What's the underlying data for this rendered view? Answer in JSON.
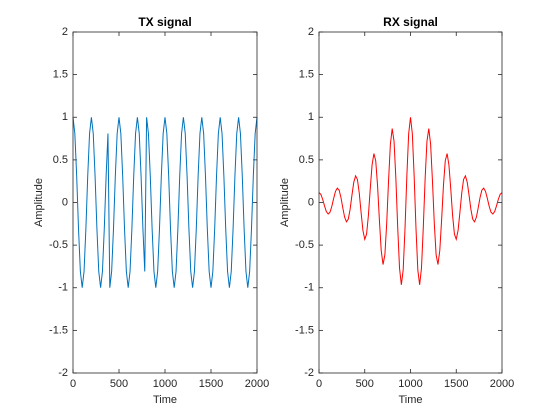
{
  "chart_data": [
    {
      "type": "line",
      "title": "TX signal",
      "x_label": "Time",
      "y_label": "Amplitude",
      "color": "#0072bd",
      "x": [
        0,
        20,
        40,
        60,
        80,
        100,
        120,
        140,
        160,
        180,
        200,
        220,
        240,
        260,
        280,
        300,
        320,
        340,
        360,
        380,
        400,
        420,
        440,
        460,
        480,
        500,
        520,
        540,
        560,
        580,
        600,
        620,
        640,
        660,
        680,
        700,
        720,
        740,
        760,
        780,
        800,
        820,
        840,
        860,
        880,
        900,
        920,
        940,
        960,
        980,
        1000,
        1020,
        1040,
        1060,
        1080,
        1100,
        1120,
        1140,
        1160,
        1180,
        1200,
        1220,
        1240,
        1260,
        1280,
        1300,
        1320,
        1340,
        1360,
        1380,
        1400,
        1420,
        1440,
        1460,
        1480,
        1500,
        1520,
        1540,
        1560,
        1580,
        1600,
        1620,
        1640,
        1660,
        1680,
        1700,
        1720,
        1740,
        1760,
        1780,
        1800,
        1820,
        1840,
        1860,
        1880,
        1900,
        1920,
        1940,
        1960,
        1980,
        2000
      ],
      "values": [
        1,
        0.809,
        0.309,
        -0.309,
        -0.809,
        -1,
        -0.809,
        -0.309,
        0.309,
        0.809,
        1,
        0.809,
        0.309,
        -0.309,
        -0.809,
        -1,
        -0.809,
        -0.309,
        0.309,
        0.809,
        -1,
        -0.809,
        -0.309,
        0.309,
        0.809,
        1,
        0.809,
        0.309,
        -0.309,
        -0.809,
        -1,
        -0.809,
        -0.309,
        0.309,
        0.809,
        1,
        0.809,
        0.309,
        -0.309,
        -0.809,
        1,
        0.809,
        0.309,
        -0.309,
        -0.809,
        -1,
        -0.809,
        -0.309,
        0.309,
        0.809,
        1,
        0.809,
        0.309,
        -0.309,
        -0.809,
        -1,
        -0.809,
        -0.309,
        0.309,
        0.809,
        1,
        0.809,
        0.309,
        -0.309,
        -0.809,
        -1,
        -0.809,
        -0.309,
        0.309,
        0.809,
        1,
        0.809,
        0.309,
        -0.309,
        -0.809,
        -1,
        -0.809,
        -0.309,
        0.309,
        0.809,
        1,
        0.809,
        0.309,
        -0.309,
        -0.809,
        -1,
        -0.809,
        -0.309,
        0.309,
        0.809,
        1,
        0.809,
        0.309,
        -0.309,
        -0.809,
        -1,
        -0.809,
        -0.309,
        0.309,
        0.809,
        1
      ],
      "xlim": [
        0,
        2000
      ],
      "xticks": [
        0,
        500,
        1000,
        1500,
        2000
      ],
      "ylim": [
        -2,
        2
      ],
      "yticks": [
        -2,
        -1.5,
        -1,
        -0.5,
        0,
        0.5,
        1,
        1.5,
        2
      ]
    },
    {
      "type": "line",
      "title": "RX signal",
      "x_label": "Time",
      "y_label": "Amplitude",
      "color": "#ff0000",
      "x": [
        0,
        20,
        40,
        60,
        80,
        100,
        120,
        140,
        160,
        180,
        200,
        220,
        240,
        260,
        280,
        300,
        320,
        340,
        360,
        380,
        400,
        420,
        440,
        460,
        480,
        500,
        520,
        540,
        560,
        580,
        600,
        620,
        640,
        660,
        680,
        700,
        720,
        740,
        760,
        780,
        800,
        820,
        840,
        860,
        880,
        900,
        920,
        940,
        960,
        980,
        1000,
        1020,
        1040,
        1060,
        1080,
        1100,
        1120,
        1140,
        1160,
        1180,
        1200,
        1220,
        1240,
        1260,
        1280,
        1300,
        1320,
        1340,
        1360,
        1380,
        1400,
        1420,
        1440,
        1460,
        1480,
        1500,
        1520,
        1540,
        1560,
        1580,
        1600,
        1620,
        1640,
        1660,
        1680,
        1700,
        1720,
        1740,
        1760,
        1780,
        1800,
        1820,
        1840,
        1860,
        1880,
        1900,
        1920,
        1940,
        1960,
        1980,
        2000
      ],
      "values": [
        0.116,
        0.096,
        0.038,
        -0.039,
        -0.106,
        -0.135,
        -0.114,
        -0.045,
        0.047,
        0.13,
        0.169,
        0.145,
        0.058,
        -0.062,
        -0.172,
        -0.227,
        -0.195,
        -0.08,
        0.085,
        0.238,
        0.313,
        0.27,
        0.11,
        -0.117,
        -0.328,
        -0.431,
        -0.371,
        -0.15,
        0.159,
        0.441,
        0.574,
        0.489,
        0.197,
        -0.206,
        -0.565,
        -0.728,
        -0.613,
        -0.243,
        0.252,
        0.681,
        0.867,
        0.72,
        0.282,
        -0.288,
        -0.769,
        -0.965,
        -0.791,
        -0.305,
        0.307,
        0.807,
        1,
        0.807,
        0.307,
        -0.305,
        -0.791,
        -0.965,
        -0.769,
        -0.288,
        0.282,
        0.72,
        0.867,
        0.681,
        0.252,
        -0.243,
        -0.613,
        -0.728,
        -0.565,
        -0.206,
        0.197,
        0.489,
        0.574,
        0.441,
        0.159,
        -0.15,
        -0.371,
        -0.431,
        -0.328,
        -0.117,
        0.11,
        0.27,
        0.313,
        0.238,
        0.085,
        -0.08,
        -0.195,
        -0.227,
        -0.172,
        -0.062,
        0.058,
        0.145,
        0.169,
        0.13,
        0.047,
        -0.045,
        -0.114,
        -0.135,
        -0.106,
        -0.039,
        0.038,
        0.096,
        0.116
      ],
      "xlim": [
        0,
        2000
      ],
      "xticks": [
        0,
        500,
        1000,
        1500,
        2000
      ],
      "ylim": [
        -2,
        2
      ],
      "yticks": [
        -2,
        -1.5,
        -1,
        -0.5,
        0,
        0.5,
        1,
        1.5,
        2
      ]
    }
  ]
}
